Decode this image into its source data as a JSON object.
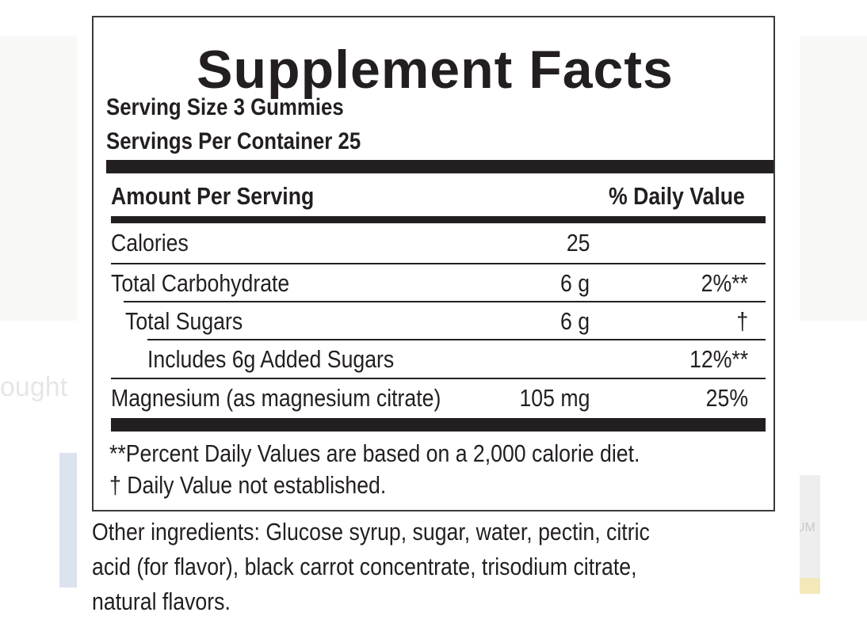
{
  "background": {
    "partial_word_left": "ought",
    "jar_text_right": "UM"
  },
  "label": {
    "title": "Supplement Facts",
    "serving_size": "Serving Size 3 Gummies",
    "servings_per_container": "Servings Per Container 25",
    "amount_header": "Amount Per Serving",
    "dv_header": "% Daily Value",
    "rows": [
      {
        "name": "Calories",
        "amount": "25",
        "dv": ""
      },
      {
        "name": "Total Carbohydrate",
        "amount": "6 g",
        "dv": "2%**"
      },
      {
        "name": "Total Sugars",
        "amount": "6 g",
        "dv": "†"
      },
      {
        "name": "Includes 6g Added Sugars",
        "amount": "",
        "dv": "12%**"
      },
      {
        "name": "Magnesium (as magnesium citrate)",
        "amount": "105 mg",
        "dv": "25%"
      }
    ],
    "footnote_1": "**Percent Daily Values are based on a 2,000 calorie diet.",
    "footnote_2": "† Daily Value not established."
  },
  "other_ingredients": {
    "line_1": "Other ingredients: Glucose syrup, sugar, water, pectin, citric",
    "line_2": "acid (for flavor), black carrot concentrate, trisodium citrate,",
    "line_3": "natural flavors."
  }
}
